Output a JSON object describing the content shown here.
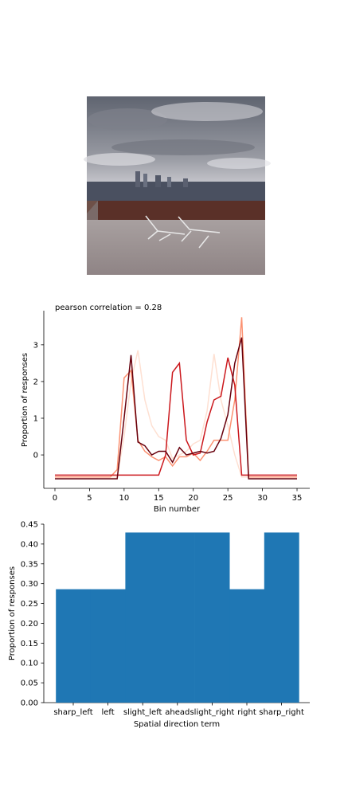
{
  "chart_data": [
    {
      "type": "line",
      "annotation": "pearson correlation = 0.28",
      "x_label": "Bin number",
      "y_label": "Proportion of responses",
      "x": [
        0,
        1,
        2,
        3,
        4,
        5,
        6,
        7,
        8,
        9,
        10,
        11,
        12,
        13,
        14,
        15,
        16,
        17,
        18,
        19,
        20,
        21,
        22,
        23,
        24,
        25,
        26,
        27,
        28,
        29,
        30,
        31,
        32,
        33,
        34,
        35
      ],
      "xlim": [
        -1.61,
        36.84
      ],
      "ylim": [
        -0.91,
        3.93
      ],
      "xticks": [
        0,
        5,
        10,
        15,
        20,
        25,
        30,
        35
      ],
      "yticks": [
        0,
        1,
        2,
        3
      ],
      "series": [
        {
          "color": "#fee0d2",
          "values": [
            -0.6,
            -0.6,
            -0.6,
            -0.6,
            -0.6,
            -0.6,
            -0.6,
            -0.6,
            -0.6,
            -0.6,
            0.5,
            2.0,
            2.85,
            1.5,
            0.8,
            0.5,
            0.4,
            -0.1,
            0,
            0.1,
            0.3,
            0.4,
            1.2,
            2.75,
            1.5,
            0.8,
            0,
            -0.6,
            -0.6,
            -0.6,
            -0.6,
            -0.6,
            -0.6,
            -0.6,
            -0.6,
            -0.6
          ]
        },
        {
          "color": "#fc9272",
          "values": [
            -0.6,
            -0.6,
            -0.6,
            -0.6,
            -0.6,
            -0.6,
            -0.6,
            -0.6,
            -0.6,
            -0.4,
            2.1,
            2.3,
            0.4,
            0.1,
            -0.05,
            -0.15,
            -0.05,
            -0.3,
            -0.05,
            -0.05,
            0.05,
            -0.15,
            0.1,
            0.4,
            0.4,
            0.4,
            1.5,
            3.75,
            -0.6,
            -0.6,
            -0.6,
            -0.6,
            -0.6,
            -0.6,
            -0.6,
            -0.6
          ]
        },
        {
          "color": "#cb181d",
          "values": [
            -0.55,
            -0.55,
            -0.55,
            -0.55,
            -0.55,
            -0.55,
            -0.55,
            -0.55,
            -0.55,
            -0.55,
            -0.55,
            -0.55,
            -0.55,
            -0.55,
            -0.55,
            -0.55,
            0,
            2.25,
            2.5,
            0.4,
            0,
            0.05,
            0.9,
            1.5,
            1.6,
            2.65,
            1.9,
            -0.55,
            -0.55,
            -0.55,
            -0.55,
            -0.55,
            -0.55,
            -0.55,
            -0.55,
            -0.55
          ]
        },
        {
          "color": "#67000d",
          "values": [
            -0.65,
            -0.65,
            -0.65,
            -0.65,
            -0.65,
            -0.65,
            -0.65,
            -0.65,
            -0.65,
            -0.65,
            1.0,
            2.72,
            0.35,
            0.25,
            0,
            0.1,
            0.1,
            -0.2,
            0.2,
            0,
            0.05,
            0.1,
            0.05,
            0.1,
            0.45,
            1.1,
            2.5,
            3.2,
            -0.65,
            -0.65,
            -0.65,
            -0.65,
            -0.65,
            -0.65,
            -0.65,
            -0.65
          ]
        }
      ]
    },
    {
      "type": "bar",
      "x_label": "Spatial direction term",
      "y_label": "Proportion of responses",
      "categories": [
        "sharp_left",
        "left",
        "slight_left",
        "ahead",
        "slight_right",
        "right",
        "sharp_right"
      ],
      "values": [
        0.286,
        0.286,
        0.429,
        0.429,
        0.429,
        0.286,
        0.429
      ],
      "color": "#1f77b4",
      "ylim": [
        0,
        0.45
      ],
      "yticks": [
        {
          "value": 0,
          "label": "0.00"
        },
        {
          "value": 0.05,
          "label": "0.05"
        },
        {
          "value": 0.1,
          "label": "0.10"
        },
        {
          "value": 0.15,
          "label": "0.15"
        },
        {
          "value": 0.2,
          "label": "0.20"
        },
        {
          "value": 0.25,
          "label": "0.25"
        },
        {
          "value": 0.3,
          "label": "0.30"
        },
        {
          "value": 0.35,
          "label": "0.35"
        },
        {
          "value": 0.4,
          "label": "0.40"
        },
        {
          "value": 0.45,
          "label": "0.45"
        }
      ]
    }
  ]
}
